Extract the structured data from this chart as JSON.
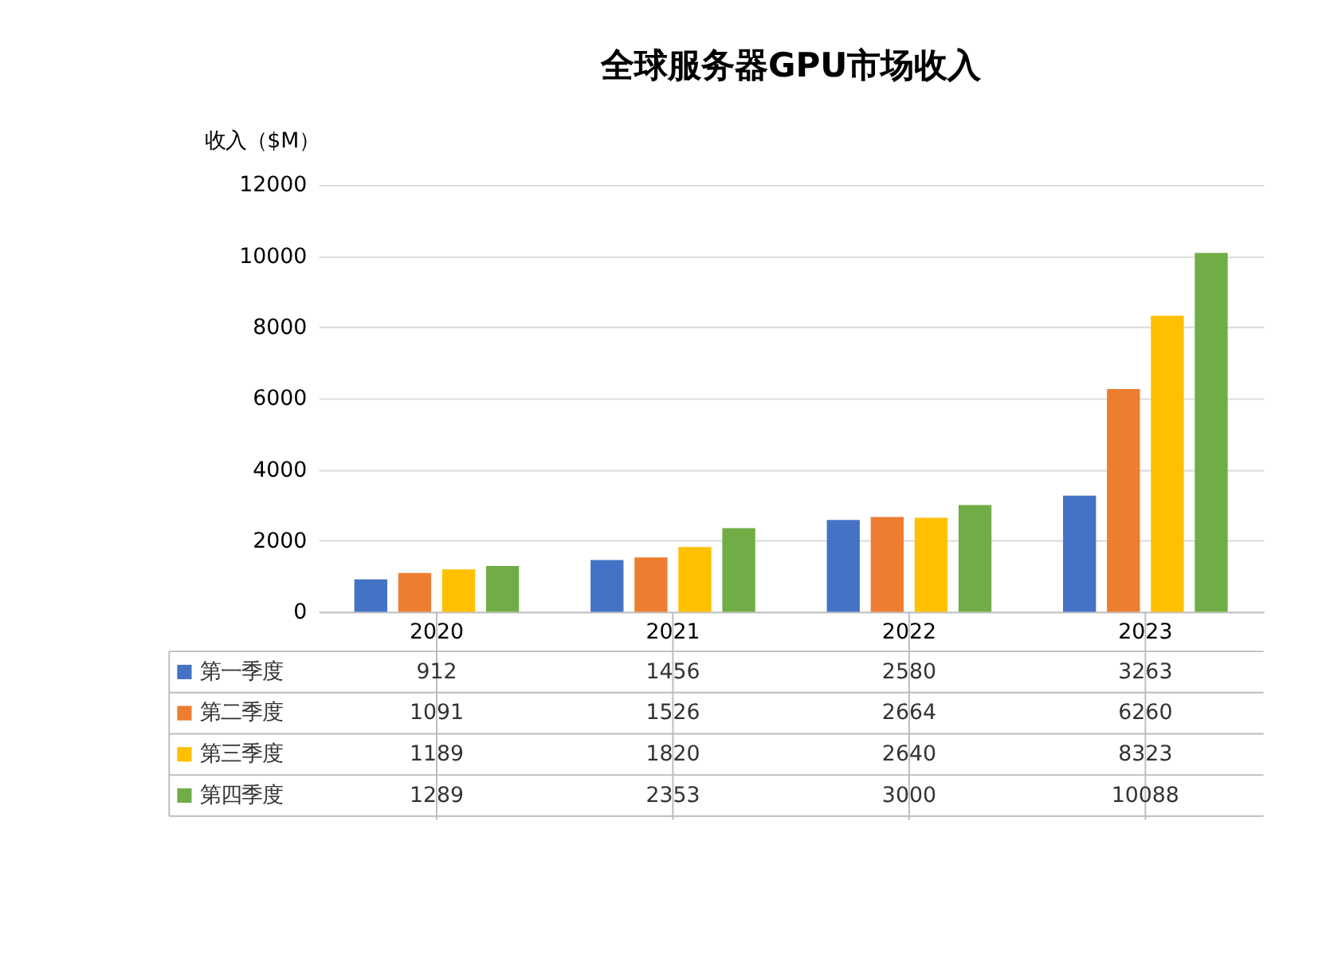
{
  "chart_data": {
    "type": "bar",
    "title": "全球服务器GPU市场收入",
    "ylabel": "收入（$M）",
    "categories": [
      "2020",
      "2021",
      "2022",
      "2023"
    ],
    "series": [
      {
        "name": "第一季度",
        "color": "#4472c4",
        "values": [
          912,
          1456,
          2580,
          3263
        ]
      },
      {
        "name": "第二季度",
        "color": "#ed7d31",
        "values": [
          1091,
          1526,
          2664,
          6260
        ]
      },
      {
        "name": "第三季度",
        "color": "#ffc000",
        "values": [
          1189,
          1820,
          2640,
          8323
        ]
      },
      {
        "name": "第四季度",
        "color": "#70ad47",
        "values": [
          1289,
          2353,
          3000,
          10088
        ]
      }
    ],
    "ylim": [
      0,
      12000
    ],
    "yticks": [
      0,
      2000,
      4000,
      6000,
      8000,
      10000,
      12000
    ],
    "grid": "y",
    "data_labels": true,
    "legend": "bottom left"
  }
}
